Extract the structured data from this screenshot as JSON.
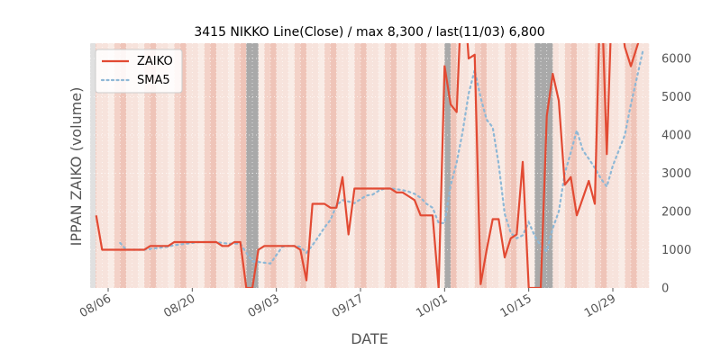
{
  "chart_data": {
    "type": "line",
    "title": "3415 NIKKO Line(Close) / max 8,300 / last(11/03) 6,800",
    "xlabel": "DATE",
    "ylabel": "IPPAN ZAIKO (volume)",
    "ylim": [
      0,
      6400
    ],
    "yticks": [
      0,
      1000,
      2000,
      3000,
      4000,
      5000,
      6000
    ],
    "ytick_labels": [
      "0",
      "1000",
      "2000",
      "3000",
      "4000",
      "5000",
      "6000"
    ],
    "xlim": [
      "2023-08-03",
      "2023-11-04"
    ],
    "xticks": [
      "2023-08-06",
      "2023-08-20",
      "2023-09-03",
      "2023-09-17",
      "2023-10-01",
      "2023-10-15",
      "2023-10-29"
    ],
    "xtick_labels": [
      "08/06",
      "08/20",
      "09/03",
      "09/17",
      "10/01",
      "10/15",
      "10/29"
    ],
    "grid": true,
    "legend": {
      "placement": "top-left",
      "entries": [
        "ZAIKO",
        "SMA5"
      ]
    },
    "colors": {
      "zaiko": "#e24a33",
      "sma5": "#8eb8d6",
      "gray_band": "#a9a9a9",
      "plot_bg": "#f5ddd5"
    },
    "series": [
      {
        "name": "ZAIKO",
        "x": [
          "2023-08-04",
          "2023-08-05",
          "2023-08-06",
          "2023-08-07",
          "2023-08-08",
          "2023-08-09",
          "2023-08-10",
          "2023-08-11",
          "2023-08-12",
          "2023-08-13",
          "2023-08-14",
          "2023-08-15",
          "2023-08-16",
          "2023-08-17",
          "2023-08-18",
          "2023-08-19",
          "2023-08-20",
          "2023-08-21",
          "2023-08-22",
          "2023-08-23",
          "2023-08-24",
          "2023-08-25",
          "2023-08-26",
          "2023-08-27",
          "2023-08-28",
          "2023-08-29",
          "2023-08-30",
          "2023-08-31",
          "2023-09-01",
          "2023-09-02",
          "2023-09-03",
          "2023-09-04",
          "2023-09-05",
          "2023-09-06",
          "2023-09-07",
          "2023-09-08",
          "2023-09-09",
          "2023-09-10",
          "2023-09-11",
          "2023-09-12",
          "2023-09-13",
          "2023-09-14",
          "2023-09-15",
          "2023-09-16",
          "2023-09-17",
          "2023-09-18",
          "2023-09-19",
          "2023-09-20",
          "2023-09-21",
          "2023-09-22",
          "2023-09-23",
          "2023-09-24",
          "2023-09-25",
          "2023-09-26",
          "2023-09-27",
          "2023-09-28",
          "2023-09-29",
          "2023-09-30",
          "2023-10-01",
          "2023-10-02",
          "2023-10-03",
          "2023-10-04",
          "2023-10-05",
          "2023-10-06",
          "2023-10-07",
          "2023-10-08",
          "2023-10-09",
          "2023-10-10",
          "2023-10-11",
          "2023-10-12",
          "2023-10-13",
          "2023-10-14",
          "2023-10-15",
          "2023-10-16",
          "2023-10-17",
          "2023-10-18",
          "2023-10-19",
          "2023-10-20",
          "2023-10-21",
          "2023-10-22",
          "2023-10-23",
          "2023-10-24",
          "2023-10-25",
          "2023-10-26",
          "2023-10-27",
          "2023-10-28",
          "2023-10-29",
          "2023-10-30",
          "2023-10-31",
          "2023-11-01",
          "2023-11-02",
          "2023-11-03"
        ],
        "values": [
          1900,
          1000,
          1000,
          1000,
          1000,
          1000,
          1000,
          1000,
          1000,
          1100,
          1100,
          1100,
          1100,
          1200,
          1200,
          1200,
          1200,
          1200,
          1200,
          1200,
          1200,
          1100,
          1100,
          1200,
          1200,
          0,
          0,
          1000,
          1100,
          1100,
          1100,
          1100,
          1100,
          1100,
          1000,
          200,
          2200,
          2200,
          2200,
          2100,
          2100,
          2900,
          1400,
          2600,
          2600,
          2600,
          2600,
          2600,
          2600,
          2600,
          2500,
          2500,
          2400,
          2300,
          1900,
          1900,
          1900,
          0,
          5800,
          4800,
          4600,
          8300,
          6000,
          6100,
          100,
          1000,
          1800,
          1800,
          800,
          1300,
          1400,
          3300,
          0,
          0,
          0,
          4500,
          5600,
          4900,
          2700,
          2900,
          1900,
          2350,
          2800,
          2200,
          8300,
          3500,
          8300,
          7500,
          6300,
          5800,
          6300,
          6800
        ]
      },
      {
        "name": "SMA5",
        "x": [
          "2023-08-08",
          "2023-08-09",
          "2023-08-10",
          "2023-08-11",
          "2023-08-12",
          "2023-08-13",
          "2023-08-14",
          "2023-08-15",
          "2023-08-16",
          "2023-08-17",
          "2023-08-18",
          "2023-08-19",
          "2023-08-20",
          "2023-08-21",
          "2023-08-22",
          "2023-08-23",
          "2023-08-24",
          "2023-08-25",
          "2023-08-26",
          "2023-08-27",
          "2023-08-28",
          "2023-08-29",
          "2023-08-30",
          "2023-08-31",
          "2023-09-01",
          "2023-09-02",
          "2023-09-03",
          "2023-09-04",
          "2023-09-05",
          "2023-09-06",
          "2023-09-07",
          "2023-09-08",
          "2023-09-09",
          "2023-09-10",
          "2023-09-11",
          "2023-09-12",
          "2023-09-13",
          "2023-09-14",
          "2023-09-15",
          "2023-09-16",
          "2023-09-17",
          "2023-09-18",
          "2023-09-19",
          "2023-09-20",
          "2023-09-21",
          "2023-09-22",
          "2023-09-23",
          "2023-09-24",
          "2023-09-25",
          "2023-09-26",
          "2023-09-27",
          "2023-09-28",
          "2023-09-29",
          "2023-09-30",
          "2023-10-01",
          "2023-10-02",
          "2023-10-03",
          "2023-10-04",
          "2023-10-05",
          "2023-10-06",
          "2023-10-07",
          "2023-10-08",
          "2023-10-09",
          "2023-10-10",
          "2023-10-11",
          "2023-10-12",
          "2023-10-13",
          "2023-10-14",
          "2023-10-15",
          "2023-10-16",
          "2023-10-17",
          "2023-10-18",
          "2023-10-19",
          "2023-10-20",
          "2023-10-21",
          "2023-10-22",
          "2023-10-23",
          "2023-10-24",
          "2023-10-25",
          "2023-10-26",
          "2023-10-27",
          "2023-10-28",
          "2023-10-29",
          "2023-10-30",
          "2023-10-31",
          "2023-11-01",
          "2023-11-02",
          "2023-11-03"
        ],
        "values": [
          1180,
          1000,
          1000,
          1000,
          1000,
          1020,
          1040,
          1060,
          1080,
          1120,
          1140,
          1160,
          1180,
          1200,
          1200,
          1200,
          1200,
          1180,
          1160,
          1160,
          1160,
          920,
          700,
          680,
          660,
          640,
          860,
          1080,
          1100,
          1100,
          1080,
          920,
          1120,
          1340,
          1580,
          1780,
          2160,
          2300,
          2260,
          2220,
          2320,
          2420,
          2440,
          2540,
          2600,
          2600,
          2580,
          2560,
          2520,
          2460,
          2360,
          2200,
          2100,
          1700,
          1700,
          2680,
          3280,
          4080,
          5080,
          5700,
          4980,
          4400,
          4200,
          3240,
          1940,
          1440,
          1300,
          1380,
          1720,
          1360,
          1100,
          960,
          1560,
          2000,
          3000,
          3540,
          4120,
          3600,
          3380,
          3140,
          2860,
          2650,
          3200,
          3600,
          4000,
          4800,
          5500,
          6200
        ]
      }
    ],
    "shaded_spans": [
      {
        "start": "2023-08-29",
        "end": "2023-08-30",
        "kind": "gray"
      },
      {
        "start": "2023-10-01",
        "end": "2023-10-01",
        "kind": "gray"
      },
      {
        "start": "2023-10-16",
        "end": "2023-10-18",
        "kind": "gray"
      }
    ]
  }
}
